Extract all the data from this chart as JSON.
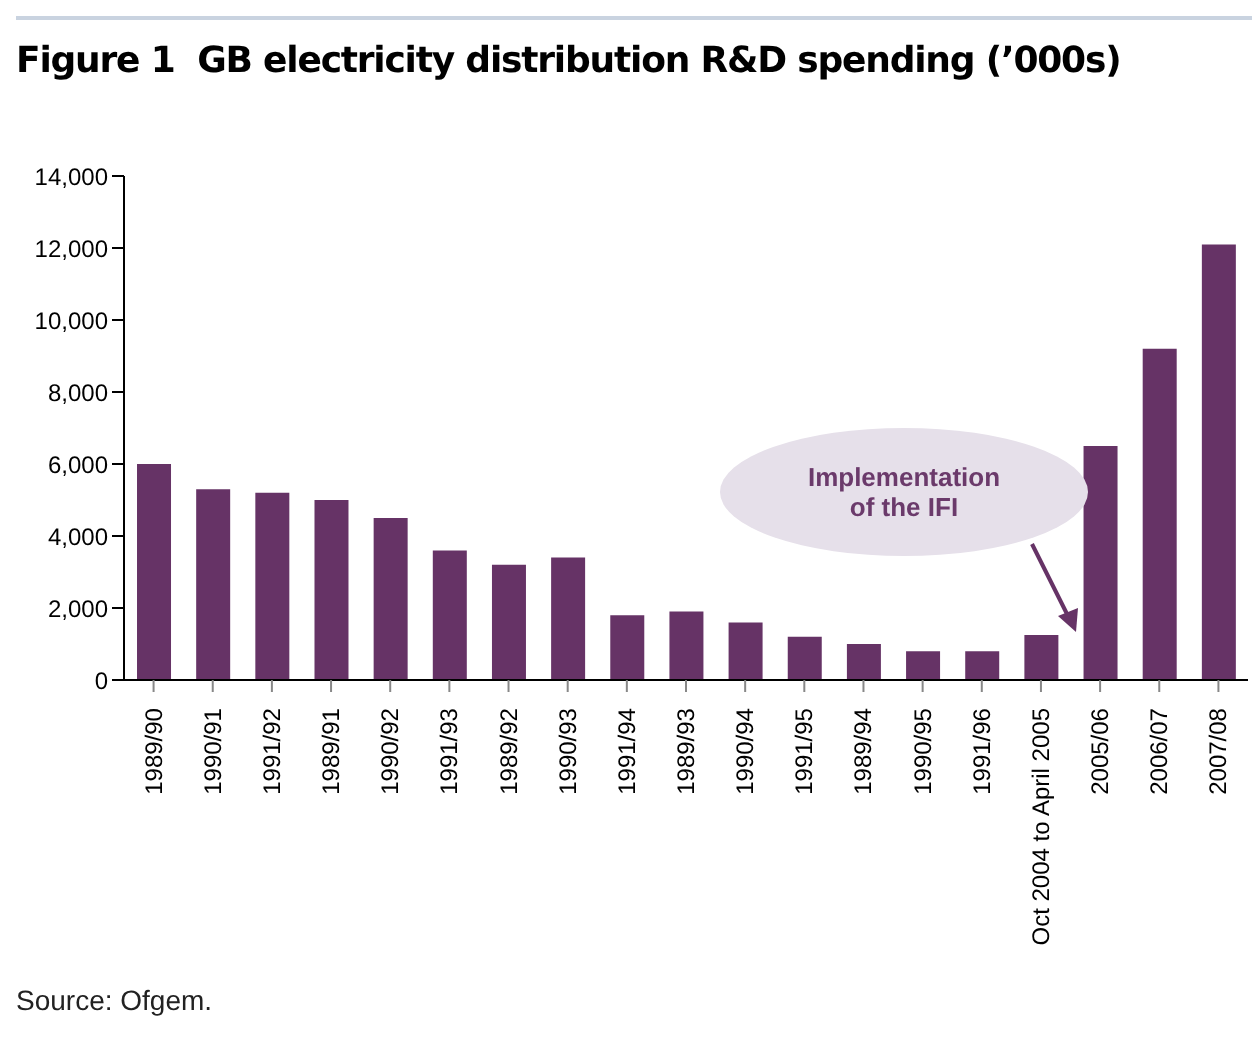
{
  "chart_data": {
    "type": "bar",
    "title": "Figure 1  GB electricity distribution R&D spending (’000s)",
    "categories": [
      "1989/90",
      "1990/91",
      "1991/92",
      "1989/91",
      "1990/92",
      "1991/93",
      "1989/92",
      "1990/93",
      "1991/94",
      "1989/93",
      "1990/94",
      "1991/95",
      "1989/94",
      "1990/95",
      "1991/96",
      "Oct 2004 to April 2005",
      "2005/06",
      "2006/07",
      "2007/08"
    ],
    "values": [
      6000,
      5300,
      5200,
      5000,
      4500,
      3600,
      3200,
      3400,
      1800,
      1900,
      1600,
      1200,
      1000,
      800,
      800,
      1250,
      6500,
      9200,
      12100
    ],
    "color": "#663366",
    "ylim": [
      0,
      14000
    ],
    "yticks": [
      0,
      {
        "value": 2000,
        "label": "2,000"
      },
      {
        "value": 4000,
        "label": "4,000"
      },
      {
        "value": 6000,
        "label": "6,000"
      },
      {
        "value": 8000,
        "label": "8,000"
      },
      {
        "value": 10000,
        "label": "10,000"
      },
      {
        "value": 12000,
        "label": "12,000"
      },
      {
        "value": 14000,
        "label": "14,000"
      }
    ],
    "annotations": [
      "Implementation of the IFI",
      "Source: Ofgem."
    ]
  }
}
